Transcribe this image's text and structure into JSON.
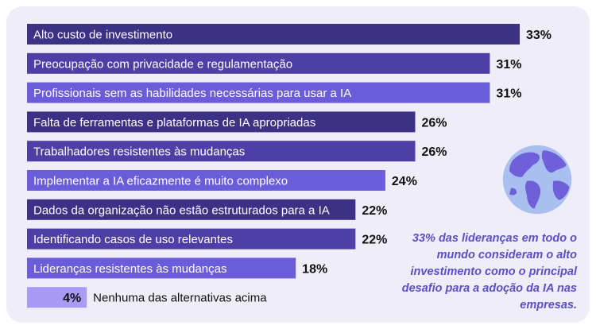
{
  "chart_data": {
    "type": "bar",
    "orientation": "horizontal",
    "categories": [
      "Alto custo de investimento",
      "Preocupação com privacidade e regulamentação",
      "Profissionais sem as habilidades necessárias para usar a IA",
      "Falta de ferramentas e plataformas de IA apropriadas",
      "Trabalhadores resistentes às mudanças",
      "Implementar a IA eficazmente é muito complexo",
      "Dados da organização não estão estruturados para a IA",
      "Identificando casos de uso relevantes",
      "Lideranças resistentes às mudanças",
      "Nenhuma das alternativas acima"
    ],
    "values": [
      33,
      31,
      31,
      26,
      26,
      24,
      22,
      22,
      18,
      4
    ],
    "value_labels": [
      "33%",
      "31%",
      "31%",
      "26%",
      "26%",
      "24%",
      "22%",
      "22%",
      "18%",
      "4%"
    ],
    "bar_colors": [
      "#3d3186",
      "#4e3fa6",
      "#6b5cd9",
      "#3d3186",
      "#4e3fa6",
      "#6b5cd9",
      "#3d3186",
      "#4e3fa6",
      "#6b5cd9",
      "#a99bf5"
    ],
    "title": "",
    "xlabel": "",
    "ylabel": "",
    "xlim": [
      0,
      33
    ],
    "grid": false,
    "legend": "none"
  },
  "callout": {
    "text": "33% das lideranças em todo o mundo consideram o alto investimento como o principal desafio para a adoção da IA nas empresas."
  },
  "colors": {
    "card_background": "#efedf8",
    "callout_text": "#5b4fc8",
    "globe_ocean": "#a8bff0",
    "globe_land": "#6f5fd9"
  },
  "icons": {
    "globe": "globe-icon"
  }
}
